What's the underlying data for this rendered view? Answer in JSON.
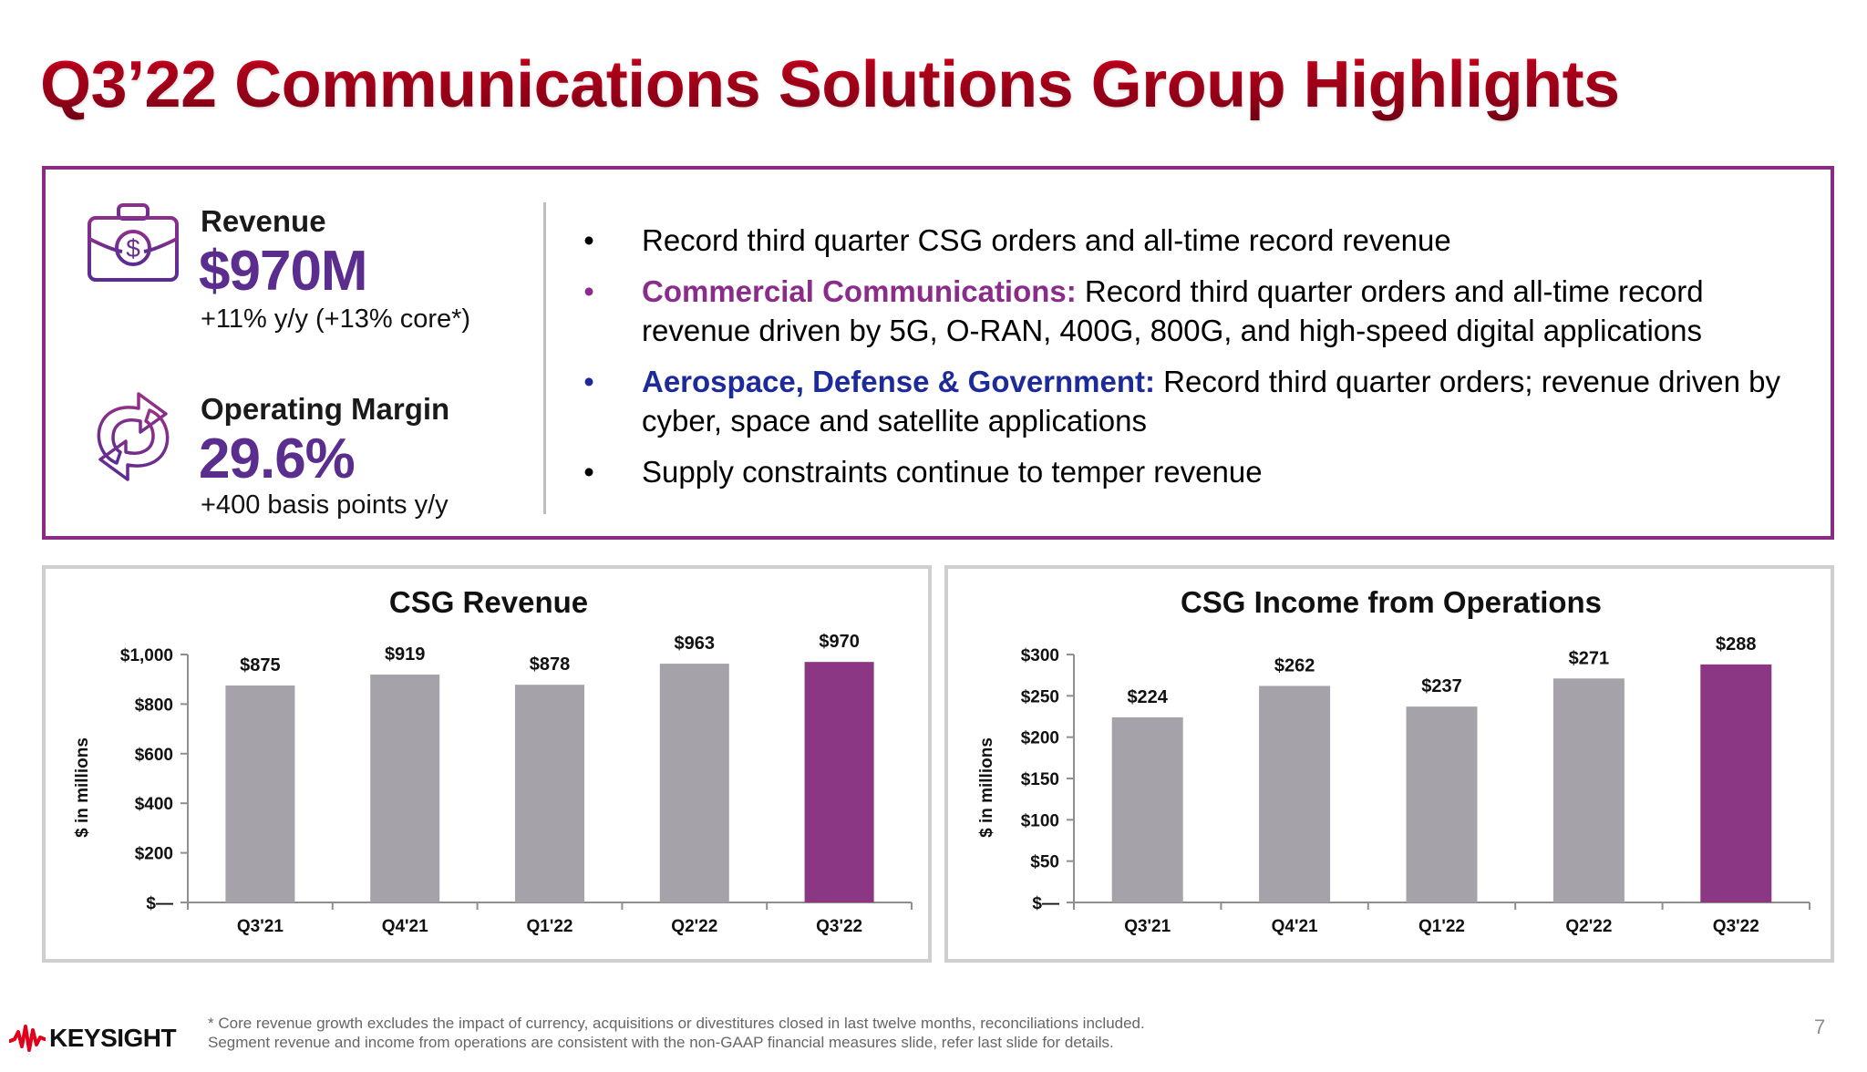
{
  "title": "Q3’22 Communications Solutions Group Highlights",
  "kpis": [
    {
      "icon": "briefcase-dollar-icon",
      "label": "Revenue",
      "value": "$970M",
      "sub": "+11% y/y (+13% core*)"
    },
    {
      "icon": "refresh-arrows-icon",
      "label": "Operating Margin",
      "value": "29.6%",
      "sub": "+400 basis points y/y"
    }
  ],
  "bullets": [
    {
      "bullet": "•",
      "bullet_color": "#000000",
      "lead": "",
      "text": "Record third quarter CSG orders and all-time record revenue"
    },
    {
      "bullet": "•",
      "bullet_color": "#8b2b8a",
      "lead": "Commercial Communications:",
      "text": " Record third quarter orders and all-time record revenue driven by 5G, O-RAN, 400G, 800G, and high-speed digital applications"
    },
    {
      "bullet": "•",
      "bullet_color": "#1c2a9a",
      "lead": "Aerospace, Defense & Government:",
      "text": " Record third quarter orders; revenue driven by cyber, space and satellite applications"
    },
    {
      "bullet": "•",
      "bullet_color": "#000000",
      "lead": "",
      "text": "Supply constraints continue to temper revenue"
    }
  ],
  "colors": {
    "title_red": "#c8001e",
    "accent_purple": "#8b3a87",
    "kpi_purple": "#5b2d8e",
    "bar_gray": "#a5a3a9",
    "bar_highlight": "#8b3784",
    "panel_border": "#cfcfcf",
    "box_border": "#8a2c86"
  },
  "chart_data": [
    {
      "type": "bar",
      "title": "CSG Revenue",
      "xlabel": "",
      "ylabel": "$ in millions",
      "categories": [
        "Q3'21",
        "Q4'21",
        "Q1'22",
        "Q2'22",
        "Q3'22"
      ],
      "values": [
        875,
        919,
        878,
        963,
        970
      ],
      "data_labels": [
        "$875",
        "$919",
        "$878",
        "$963",
        "$970"
      ],
      "highlight_index": 4,
      "ylim": [
        0,
        1000
      ],
      "yticks": [
        0,
        200,
        400,
        600,
        800,
        1000
      ],
      "ytick_labels": [
        "$—",
        "$200",
        "$400",
        "$600",
        "$800",
        "$1,000"
      ],
      "grid": false,
      "legend": "none"
    },
    {
      "type": "bar",
      "title": "CSG Income from Operations",
      "xlabel": "",
      "ylabel": "$ in millions",
      "categories": [
        "Q3'21",
        "Q4'21",
        "Q1'22",
        "Q2'22",
        "Q3'22"
      ],
      "values": [
        224,
        262,
        237,
        271,
        288
      ],
      "data_labels": [
        "$224",
        "$262",
        "$237",
        "$271",
        "$288"
      ],
      "highlight_index": 4,
      "ylim": [
        0,
        300
      ],
      "yticks": [
        0,
        50,
        100,
        150,
        200,
        250,
        300
      ],
      "ytick_labels": [
        "$—",
        "$50",
        "$100",
        "$150",
        "$200",
        "$250",
        "$300"
      ],
      "grid": false,
      "legend": "none"
    }
  ],
  "footer": {
    "logo_text": "KEYSIGHT",
    "footnote_line1": "* Core revenue growth excludes the impact of currency, acquisitions or divestitures closed in last twelve months, reconciliations included.",
    "footnote_line2": "Segment revenue and income from operations are consistent with the non-GAAP financial measures slide, refer last slide for details.",
    "page_number": "7"
  }
}
